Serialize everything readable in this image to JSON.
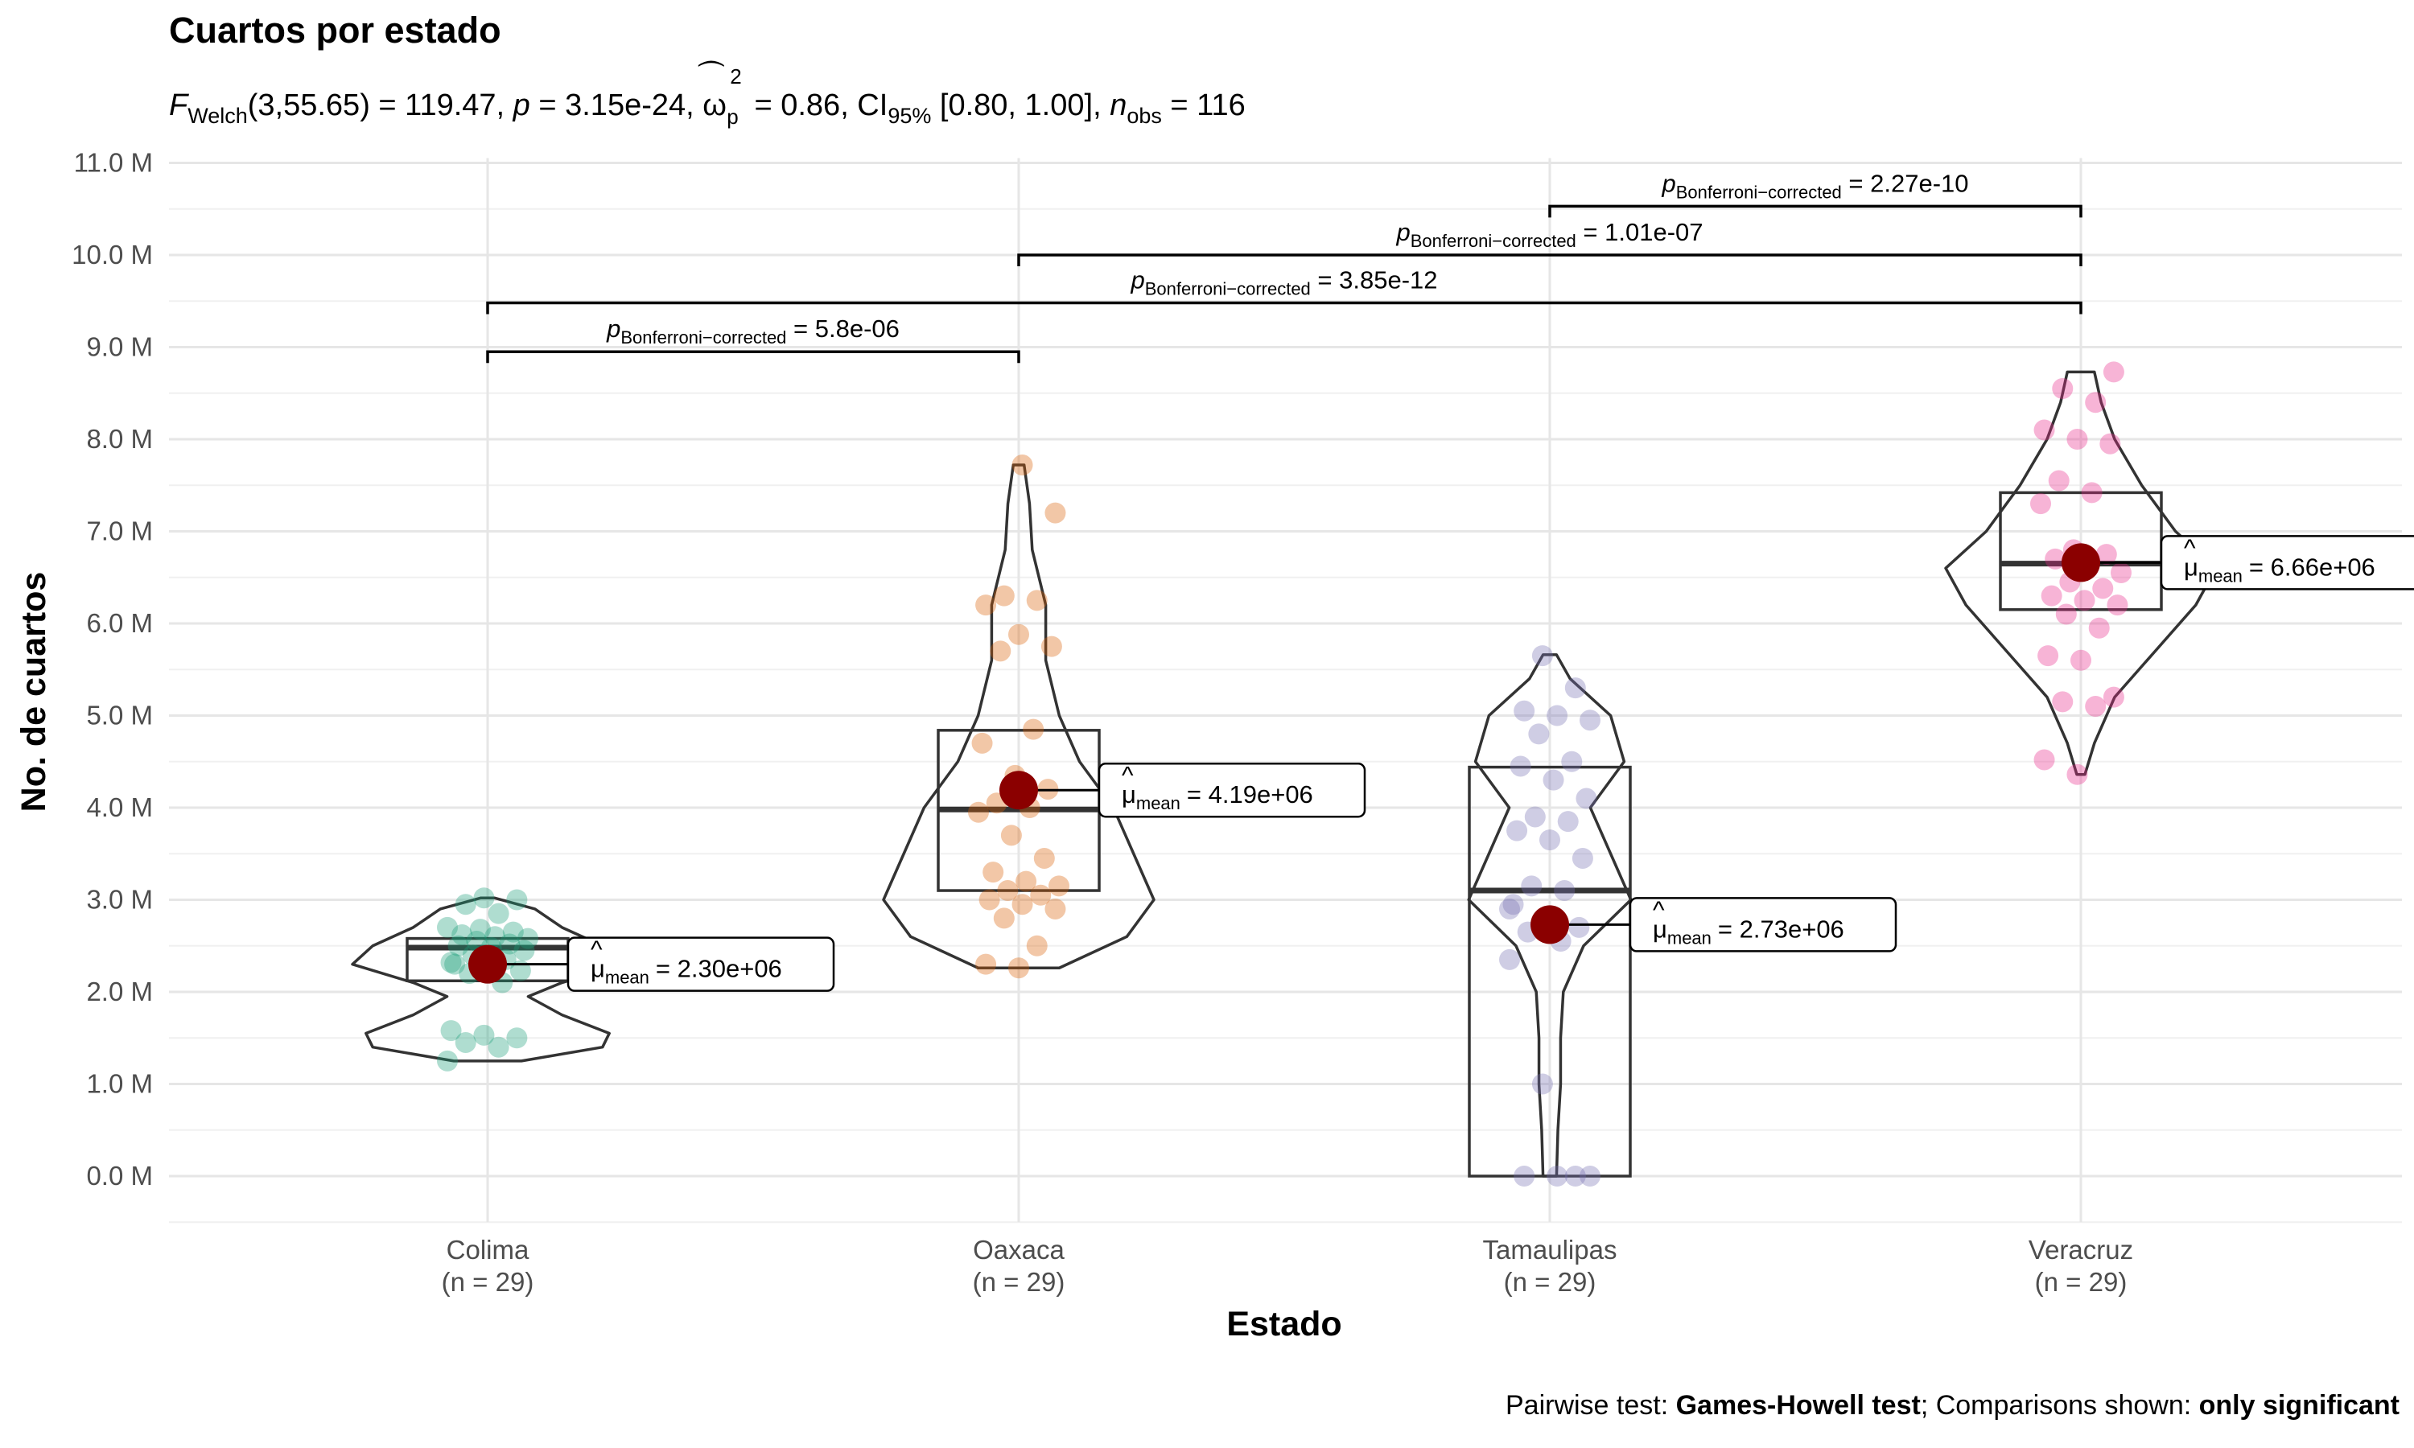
{
  "chart_data": {
    "type": "violin",
    "title": "Cuartos por estado",
    "subtitle": {
      "f_symbol": "F",
      "f_sub": "Welch",
      "f_args": "(3,55.65) = 119.47, ",
      "p_symbol": "p",
      "p_value": " = 3.15e-24, ",
      "omega_symbol": "ω",
      "omega_sup": "2",
      "omega_sub": "p",
      "omega_value": " = 0.86, CI",
      "ci_sub": "95%",
      "ci_value": " [0.80, 1.00], ",
      "n_symbol": "n",
      "n_sub": "obs",
      "n_value": " = 116"
    },
    "xlabel": "Estado",
    "ylabel": "No. de cuartos",
    "ylim": [
      -500000,
      11000000
    ],
    "yticks": [
      "0.0 M",
      "1.0 M",
      "2.0 M",
      "3.0 M",
      "4.0 M",
      "5.0 M",
      "6.0 M",
      "7.0 M",
      "8.0 M",
      "9.0 M",
      "10.0 M",
      "11.0 M"
    ],
    "ytick_values": [
      0,
      1000000,
      2000000,
      3000000,
      4000000,
      5000000,
      6000000,
      7000000,
      8000000,
      9000000,
      10000000,
      11000000
    ],
    "grid": true,
    "mean_label_prefix": "μ",
    "mean_label_sub": "mean",
    "groups": [
      {
        "name": "Colima",
        "n_label": "(n = 29)",
        "color": "#1b9e77",
        "box": {
          "q1": 2120000,
          "median": 2480000,
          "q3": 2580000
        },
        "mean": 2300000,
        "mean_label": "= 2.30e+06",
        "violin_min": 1250000,
        "violin_max": 3020000,
        "violin_profile": [
          [
            1250000,
            0.25
          ],
          [
            1400000,
            0.85
          ],
          [
            1550000,
            0.9
          ],
          [
            1750000,
            0.55
          ],
          [
            1950000,
            0.3
          ],
          [
            2100000,
            0.55
          ],
          [
            2300000,
            1.0
          ],
          [
            2500000,
            0.85
          ],
          [
            2700000,
            0.55
          ],
          [
            2900000,
            0.35
          ],
          [
            3020000,
            0.05
          ]
        ],
        "points": [
          1250000,
          1400000,
          1450000,
          1500000,
          1530000,
          1580000,
          2100000,
          2200000,
          2230000,
          2280000,
          2300000,
          2350000,
          2400000,
          2450000,
          2480000,
          2500000,
          2520000,
          2550000,
          2580000,
          2600000,
          2620000,
          2650000,
          2680000,
          2700000,
          2850000,
          2950000,
          3000000,
          3020000,
          2320000
        ]
      },
      {
        "name": "Oaxaca",
        "n_label": "(n = 29)",
        "color": "#d95f02",
        "box": {
          "q1": 3100000,
          "median": 3980000,
          "q3": 4840000
        },
        "mean": 4190000,
        "mean_label": "= 4.19e+06",
        "violin_min": 2260000,
        "violin_max": 7720000,
        "violin_profile": [
          [
            2260000,
            0.3
          ],
          [
            2600000,
            0.8
          ],
          [
            3000000,
            1.0
          ],
          [
            3500000,
            0.85
          ],
          [
            4000000,
            0.7
          ],
          [
            4500000,
            0.45
          ],
          [
            5000000,
            0.3
          ],
          [
            5600000,
            0.2
          ],
          [
            6200000,
            0.2
          ],
          [
            6800000,
            0.1
          ],
          [
            7300000,
            0.08
          ],
          [
            7720000,
            0.04
          ]
        ],
        "points": [
          2260000,
          2300000,
          2500000,
          2800000,
          2900000,
          2950000,
          3000000,
          3050000,
          3100000,
          3150000,
          3200000,
          3300000,
          3450000,
          3700000,
          3950000,
          4000000,
          4050000,
          4200000,
          4350000,
          4700000,
          4850000,
          5700000,
          5750000,
          5880000,
          6200000,
          6250000,
          6300000,
          7200000,
          7720000
        ]
      },
      {
        "name": "Tamaulipas",
        "n_label": "(n = 29)",
        "color": "#7570b3",
        "box": {
          "q1": 0,
          "median": 3100000,
          "q3": 4440000
        },
        "mean": 2730000,
        "mean_label": "= 2.73e+06",
        "violin_min": 0,
        "violin_max": 5660000,
        "violin_profile": [
          [
            0,
            0.05
          ],
          [
            500000,
            0.06
          ],
          [
            1000000,
            0.08
          ],
          [
            1500000,
            0.08
          ],
          [
            2000000,
            0.1
          ],
          [
            2500000,
            0.25
          ],
          [
            3000000,
            0.6
          ],
          [
            3500000,
            0.45
          ],
          [
            4000000,
            0.3
          ],
          [
            4500000,
            0.55
          ],
          [
            5000000,
            0.45
          ],
          [
            5400000,
            0.15
          ],
          [
            5660000,
            0.05
          ]
        ],
        "points": [
          0,
          0,
          0,
          0,
          1000000,
          2350000,
          2550000,
          2650000,
          2700000,
          2800000,
          2950000,
          3100000,
          3150000,
          3450000,
          3650000,
          3750000,
          3850000,
          3900000,
          4100000,
          4300000,
          4450000,
          4500000,
          4800000,
          4950000,
          5000000,
          5050000,
          5300000,
          5650000,
          2900000
        ]
      },
      {
        "name": "Veracruz",
        "n_label": "(n = 29)",
        "color": "#e7298a",
        "box": {
          "q1": 6150000,
          "median": 6650000,
          "q3": 7420000
        },
        "mean": 6660000,
        "mean_label": "= 6.66e+06",
        "violin_min": 4360000,
        "violin_max": 8730000,
        "violin_profile": [
          [
            4360000,
            0.03
          ],
          [
            4700000,
            0.1
          ],
          [
            5200000,
            0.25
          ],
          [
            5700000,
            0.55
          ],
          [
            6200000,
            0.85
          ],
          [
            6600000,
            1.0
          ],
          [
            7000000,
            0.7
          ],
          [
            7500000,
            0.45
          ],
          [
            8000000,
            0.25
          ],
          [
            8400000,
            0.15
          ],
          [
            8730000,
            0.1
          ]
        ],
        "points": [
          4360000,
          4520000,
          5100000,
          5150000,
          5200000,
          5600000,
          5650000,
          5950000,
          6100000,
          6200000,
          6250000,
          6300000,
          6380000,
          6450000,
          6550000,
          6600000,
          6700000,
          6750000,
          6800000,
          7300000,
          7420000,
          7550000,
          7950000,
          8000000,
          8100000,
          8400000,
          8550000,
          8730000,
          6650000
        ]
      }
    ],
    "comparisons": [
      {
        "from": "Colima",
        "to": "Oaxaca",
        "y": 8950000,
        "label_prefix": "p",
        "label_sub": "Bonferroni−corrected",
        "label_value": " = 5.8e-06"
      },
      {
        "from": "Colima",
        "to": "Veracruz",
        "y": 9480000,
        "label_prefix": "p",
        "label_sub": "Bonferroni−corrected",
        "label_value": " = 3.85e-12"
      },
      {
        "from": "Oaxaca",
        "to": "Veracruz",
        "y": 10000000,
        "label_prefix": "p",
        "label_sub": "Bonferroni−corrected",
        "label_value": " = 1.01e-07"
      },
      {
        "from": "Tamaulipas",
        "to": "Veracruz",
        "y": 10530000,
        "label_prefix": "p",
        "label_sub": "Bonferroni−corrected",
        "label_value": " = 2.27e-10"
      }
    ],
    "caption": {
      "prefix": "Pairwise test: ",
      "test": "Games-Howell test",
      "middle": "; Comparisons shown: ",
      "shown": "only significant"
    },
    "mean_point_color": "#8b0000"
  }
}
